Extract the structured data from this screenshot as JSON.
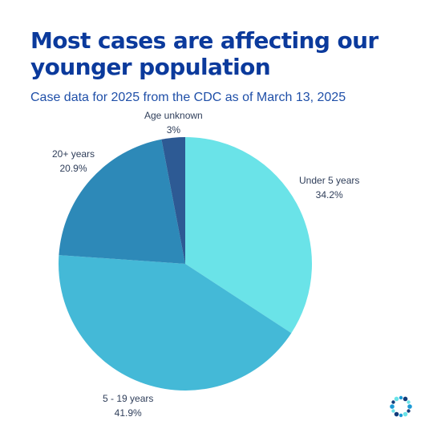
{
  "title": "Most cases are affecting our younger population",
  "subtitle": "Case data for 2025 from the CDC as of March 13, 2025",
  "chart_data": {
    "type": "pie",
    "start_angle_deg": 0,
    "direction": "clockwise",
    "slices": [
      {
        "label": "Under 5 years",
        "value": 34.2,
        "value_label": "34.2%",
        "color": "#6ae3e8"
      },
      {
        "label": "5 - 19 years",
        "value": 41.9,
        "value_label": "41.9%",
        "color": "#44b9d7"
      },
      {
        "label": "20+ years",
        "value": 20.9,
        "value_label": "20.9%",
        "color": "#2d89b8"
      },
      {
        "label": "Age unknown",
        "value": 3,
        "value_label": "3%",
        "color": "#2d5a94"
      }
    ]
  },
  "logo": {
    "icon": "dotted-ring-logo-icon",
    "colors": [
      "#1b9ad6",
      "#123c7a",
      "#6ae3e8"
    ]
  }
}
